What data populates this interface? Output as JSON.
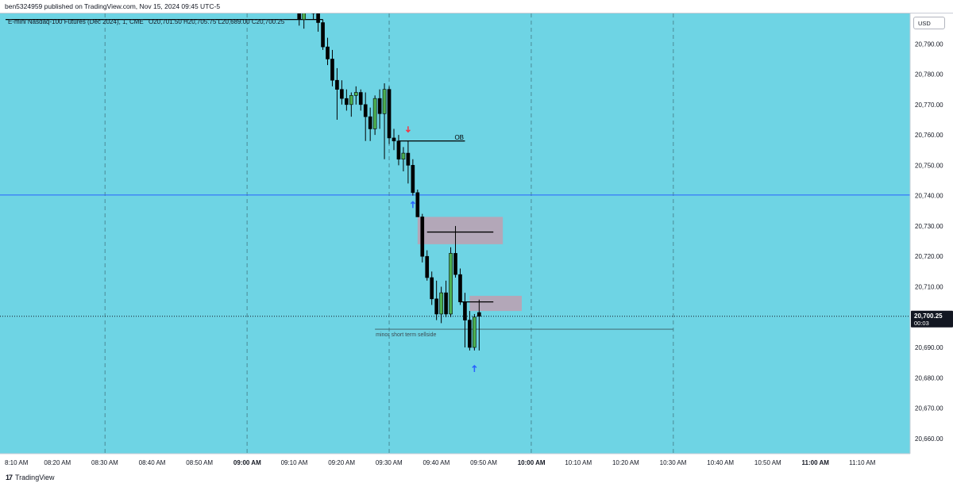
{
  "header": {
    "publish_line": "ben5324959 published on TradingView.com, Nov 15, 2024 09:45 UTC-5"
  },
  "footer": {
    "logo_mark": "17",
    "brand": "TradingView"
  },
  "legend": {
    "symbol": "E-mini Nasdaq-100 Futures (Dec 2024), 1, CME",
    "ohlc_line": "O20,701.50  H20,705.75  L20,689.00  C20,700.25"
  },
  "price_scale": {
    "currency": "USD",
    "current_price": "20,700.25",
    "countdown": "00:03"
  },
  "colors": {
    "background": "#6ed4e4",
    "bull": "#4caf50",
    "bear": "#000000",
    "zone": "#b3a7b8",
    "horizontal_line": "#2962ff",
    "arrow_down": "#f23645",
    "arrow_up": "#2962ff"
  },
  "annotations": {
    "ob_label": "OB",
    "sellside_label": "minor short term sellside"
  },
  "chart_data": {
    "type": "candlestick",
    "title": "E-mini Nasdaq-100 Futures (Dec 2024), 1, CME",
    "timeframe": "1 minute",
    "x_axis": {
      "tick_labels": [
        "8:10 AM",
        "08:20 AM",
        "08:30 AM",
        "08:40 AM",
        "08:50 AM",
        "09:00 AM",
        "09:10 AM",
        "09:20 AM",
        "09:30 AM",
        "09:40 AM",
        "09:50 AM",
        "10:00 AM",
        "10:10 AM",
        "10:20 AM",
        "10:30 AM",
        "10:40 AM",
        "10:50 AM",
        "11:00 AM",
        "11:10 AM"
      ],
      "bold_ticks": [
        "09:00 AM",
        "10:00 AM",
        "11:00 AM"
      ],
      "range_minutes": [
        489,
        680
      ]
    },
    "y_axis": {
      "tick_labels": [
        "20,660.00",
        "20,670.00",
        "20,680.00",
        "20,690.00",
        "20,700.00",
        "20,710.00",
        "20,720.00",
        "20,730.00",
        "20,740.00",
        "20,750.00",
        "20,760.00",
        "20,770.00",
        "20,780.00",
        "20,790.00"
      ],
      "range": [
        20655,
        20800
      ]
    },
    "vertical_dashed_lines_minutes": [
      510,
      540,
      570,
      600,
      630
    ],
    "candles": [
      {
        "t": 550,
        "o": 20810,
        "h": 20814,
        "l": 20805,
        "c": 20806
      },
      {
        "t": 551,
        "o": 20806,
        "h": 20808,
        "l": 20796,
        "c": 20798
      },
      {
        "t": 552,
        "o": 20798,
        "h": 20806,
        "l": 20795,
        "c": 20804
      },
      {
        "t": 553,
        "o": 20804,
        "h": 20810,
        "l": 20800,
        "c": 20808
      },
      {
        "t": 554,
        "o": 20808,
        "h": 20812,
        "l": 20798,
        "c": 20800
      },
      {
        "t": 555,
        "o": 20800,
        "h": 20805,
        "l": 20794,
        "c": 20797
      },
      {
        "t": 556,
        "o": 20797,
        "h": 20798,
        "l": 20788,
        "c": 20789
      },
      {
        "t": 557,
        "o": 20789,
        "h": 20792,
        "l": 20783,
        "c": 20785
      },
      {
        "t": 558,
        "o": 20785,
        "h": 20788,
        "l": 20776,
        "c": 20778
      },
      {
        "t": 559,
        "o": 20778,
        "h": 20782,
        "l": 20765,
        "c": 20775
      },
      {
        "t": 560,
        "o": 20775,
        "h": 20778,
        "l": 20770,
        "c": 20772
      },
      {
        "t": 561,
        "o": 20772,
        "h": 20775,
        "l": 20768,
        "c": 20770
      },
      {
        "t": 562,
        "o": 20770,
        "h": 20774,
        "l": 20766,
        "c": 20773
      },
      {
        "t": 563,
        "o": 20773,
        "h": 20776,
        "l": 20770,
        "c": 20774
      },
      {
        "t": 564,
        "o": 20774,
        "h": 20775,
        "l": 20768,
        "c": 20770
      },
      {
        "t": 565,
        "o": 20770,
        "h": 20774,
        "l": 20758,
        "c": 20766
      },
      {
        "t": 566,
        "o": 20766,
        "h": 20769,
        "l": 20758,
        "c": 20762
      },
      {
        "t": 567,
        "o": 20762,
        "h": 20773,
        "l": 20760,
        "c": 20772
      },
      {
        "t": 568,
        "o": 20772,
        "h": 20775,
        "l": 20762,
        "c": 20767
      },
      {
        "t": 569,
        "o": 20767,
        "h": 20777,
        "l": 20752,
        "c": 20775
      },
      {
        "t": 570,
        "o": 20775,
        "h": 20776,
        "l": 20757,
        "c": 20759
      },
      {
        "t": 571,
        "o": 20759,
        "h": 20762,
        "l": 20755,
        "c": 20758
      },
      {
        "t": 572,
        "o": 20758,
        "h": 20760,
        "l": 20750,
        "c": 20752
      },
      {
        "t": 573,
        "o": 20752,
        "h": 20756,
        "l": 20748,
        "c": 20754
      },
      {
        "t": 574,
        "o": 20754,
        "h": 20758,
        "l": 20744,
        "c": 20750
      },
      {
        "t": 575,
        "o": 20750,
        "h": 20752,
        "l": 20740,
        "c": 20741
      },
      {
        "t": 576,
        "o": 20741,
        "h": 20742,
        "l": 20733,
        "c": 20733
      },
      {
        "t": 577,
        "o": 20733,
        "h": 20734,
        "l": 20718,
        "c": 20720
      },
      {
        "t": 578,
        "o": 20720,
        "h": 20722,
        "l": 20712,
        "c": 20713
      },
      {
        "t": 579,
        "o": 20713,
        "h": 20715,
        "l": 20704,
        "c": 20706
      },
      {
        "t": 580,
        "o": 20706,
        "h": 20712,
        "l": 20699,
        "c": 20701
      },
      {
        "t": 581,
        "o": 20701,
        "h": 20710,
        "l": 20698,
        "c": 20708
      },
      {
        "t": 582,
        "o": 20708,
        "h": 20712,
        "l": 20700,
        "c": 20701
      },
      {
        "t": 583,
        "o": 20701,
        "h": 20723,
        "l": 20700,
        "c": 20721
      },
      {
        "t": 584,
        "o": 20721,
        "h": 20730,
        "l": 20713,
        "c": 20714
      },
      {
        "t": 585,
        "o": 20714,
        "h": 20716,
        "l": 20704,
        "c": 20705
      },
      {
        "t": 586,
        "o": 20705,
        "h": 20708,
        "l": 20690,
        "c": 20699
      },
      {
        "t": 587,
        "o": 20699,
        "h": 20702,
        "l": 20689,
        "c": 20690
      },
      {
        "t": 588,
        "o": 20690,
        "h": 20701,
        "l": 20689,
        "c": 20700
      },
      {
        "t": 589,
        "o": 20701.5,
        "h": 20705.75,
        "l": 20689,
        "c": 20700.25
      }
    ],
    "horizontal_lines": [
      {
        "price": 20740.2,
        "style": "solid",
        "color": "#2962ff",
        "full_width": true
      },
      {
        "price": 20700.25,
        "style": "dotted",
        "color": "#131722",
        "full_width": true,
        "label": "current price"
      }
    ],
    "segments": [
      {
        "from_t": 489,
        "to_t": 556,
        "price": 20798,
        "label": ""
      },
      {
        "from_t": 572,
        "to_t": 586,
        "price": 20758,
        "label": "OB"
      },
      {
        "from_t": 578,
        "to_t": 592,
        "price": 20728,
        "label": ""
      },
      {
        "from_t": 585,
        "to_t": 592,
        "price": 20705,
        "label": ""
      },
      {
        "from_t": 567,
        "to_t": 630,
        "price": 20696,
        "label": "minor short term sellside"
      }
    ],
    "zones": [
      {
        "from_t": 576,
        "to_t": 594,
        "price_top": 20733,
        "price_bottom": 20724
      },
      {
        "from_t": 587,
        "to_t": 598,
        "price_top": 20707,
        "price_bottom": 20702
      }
    ],
    "arrows": [
      {
        "t": 574,
        "price": 20761,
        "direction": "down",
        "color": "#f23645"
      },
      {
        "t": 575,
        "price": 20738,
        "direction": "up",
        "color": "#2962ff"
      },
      {
        "t": 588,
        "price": 20684,
        "direction": "up",
        "color": "#2962ff"
      }
    ]
  }
}
